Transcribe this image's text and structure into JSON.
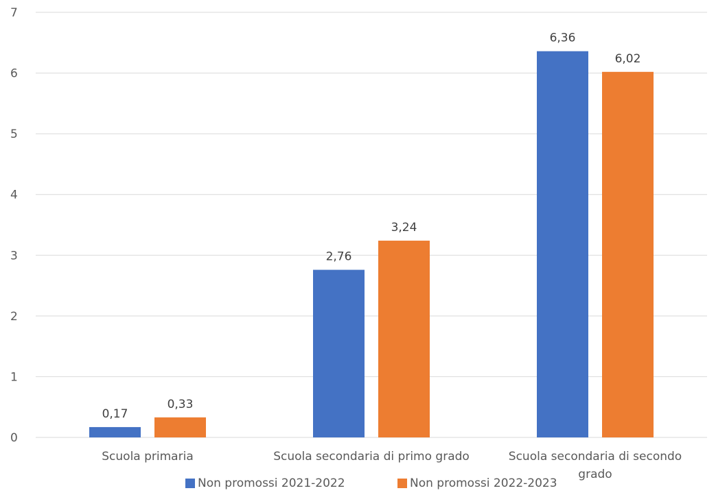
{
  "chart_data": {
    "type": "bar",
    "categories": [
      "Scuola primaria",
      "Scuola secondaria di primo grado",
      "Scuola secondaria di secondo grado"
    ],
    "series": [
      {
        "name": "Non promossi 2021-2022",
        "color": "#4472C4",
        "values": [
          0.17,
          2.76,
          6.36
        ],
        "labels": [
          "0,17",
          "2,76",
          "6,36"
        ]
      },
      {
        "name": "Non promossi 2022-2023",
        "color": "#ED7D31",
        "values": [
          0.33,
          3.24,
          6.02
        ],
        "labels": [
          "0,33",
          "3,24",
          "6,02"
        ]
      }
    ],
    "title": "",
    "xlabel": "",
    "ylabel": "",
    "ylim": [
      0,
      7
    ],
    "yticks": [
      "0",
      "1",
      "2",
      "3",
      "4",
      "5",
      "6",
      "7"
    ],
    "grid": true,
    "legend_position": "bottom"
  }
}
